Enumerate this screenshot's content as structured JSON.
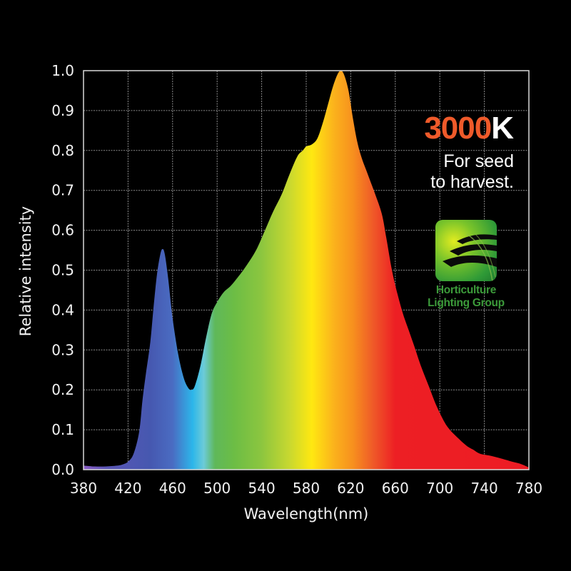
{
  "chart_data": {
    "type": "area",
    "title": "",
    "xlabel": "Wavelength(nm)",
    "ylabel": "Relative intensity",
    "xlim": [
      380,
      780
    ],
    "ylim": [
      0.0,
      1.0
    ],
    "grid": true,
    "x_ticks": [
      "380",
      "420",
      "460",
      "500",
      "540",
      "580",
      "620",
      "660",
      "700",
      "740",
      "780"
    ],
    "y_ticks": [
      "0.0",
      "0.1",
      "0.2",
      "0.3",
      "0.4",
      "0.5",
      "0.6",
      "0.7",
      "0.8",
      "0.9",
      "1.0"
    ],
    "series": [
      {
        "name": "3000K spectrum",
        "x": [
          380,
          390,
          400,
          410,
          415,
          420,
          425,
          430,
          433,
          436,
          440,
          443,
          446,
          449,
          451,
          453,
          456,
          460,
          465,
          470,
          474,
          477,
          480,
          485,
          490,
          495,
          500,
          506,
          512,
          518,
          526,
          535,
          543,
          550,
          558,
          565,
          572,
          577,
          580,
          585,
          590,
          595,
          600,
          604,
          608,
          611,
          614,
          618,
          622,
          626,
          630,
          634,
          638,
          642,
          648,
          652,
          657,
          662,
          667,
          672,
          677,
          683,
          690,
          697,
          704,
          709,
          716,
          724,
          730,
          736,
          745,
          755,
          765,
          772,
          778,
          780
        ],
        "y": [
          0.01,
          0.008,
          0.008,
          0.01,
          0.013,
          0.02,
          0.04,
          0.095,
          0.175,
          0.24,
          0.32,
          0.41,
          0.49,
          0.54,
          0.553,
          0.54,
          0.48,
          0.38,
          0.29,
          0.23,
          0.205,
          0.2,
          0.21,
          0.26,
          0.33,
          0.39,
          0.42,
          0.445,
          0.46,
          0.48,
          0.51,
          0.55,
          0.6,
          0.645,
          0.69,
          0.74,
          0.785,
          0.8,
          0.81,
          0.815,
          0.83,
          0.87,
          0.92,
          0.96,
          0.99,
          1.0,
          0.99,
          0.95,
          0.88,
          0.82,
          0.78,
          0.75,
          0.72,
          0.69,
          0.64,
          0.58,
          0.5,
          0.44,
          0.39,
          0.35,
          0.31,
          0.26,
          0.21,
          0.16,
          0.12,
          0.1,
          0.08,
          0.06,
          0.05,
          0.04,
          0.035,
          0.028,
          0.02,
          0.015,
          0.008,
          0.005
        ]
      }
    ],
    "peaks": [
      {
        "wavelength": 451,
        "intensity": 0.55,
        "label": "blue peak"
      },
      {
        "wavelength": 611,
        "intensity": 1.0,
        "label": "main peak"
      }
    ],
    "fill_gradient": [
      {
        "wl": 380,
        "color": "#8a5cc4"
      },
      {
        "wl": 400,
        "color": "#5a55b5"
      },
      {
        "wl": 440,
        "color": "#4658b0"
      },
      {
        "wl": 460,
        "color": "#4a6cc2"
      },
      {
        "wl": 478,
        "color": "#2cb6ea"
      },
      {
        "wl": 488,
        "color": "#6ccbd8"
      },
      {
        "wl": 498,
        "color": "#5fb85a"
      },
      {
        "wl": 515,
        "color": "#6cbd45"
      },
      {
        "wl": 540,
        "color": "#8cc63f"
      },
      {
        "wl": 565,
        "color": "#c8d830"
      },
      {
        "wl": 585,
        "color": "#ffe811"
      },
      {
        "wl": 605,
        "color": "#fbb21c"
      },
      {
        "wl": 622,
        "color": "#f7901e"
      },
      {
        "wl": 640,
        "color": "#ef5a28"
      },
      {
        "wl": 660,
        "color": "#ed1f24"
      },
      {
        "wl": 780,
        "color": "#ed1c24"
      }
    ]
  },
  "badge": {
    "cct_number": "3000",
    "cct_unit": "K",
    "tagline_line1": "For seed",
    "tagline_line2": "to harvest."
  },
  "logo": {
    "icon": "leaf-logo-icon",
    "line1": "Horticulture",
    "line2": "Lighting Group"
  },
  "colors": {
    "background": "#000000",
    "grid": "#bdbdbd",
    "axis_frame": "#d9d9d9",
    "accent_orange": "#ef5a2a",
    "logo_green": "#3c9a3a"
  }
}
